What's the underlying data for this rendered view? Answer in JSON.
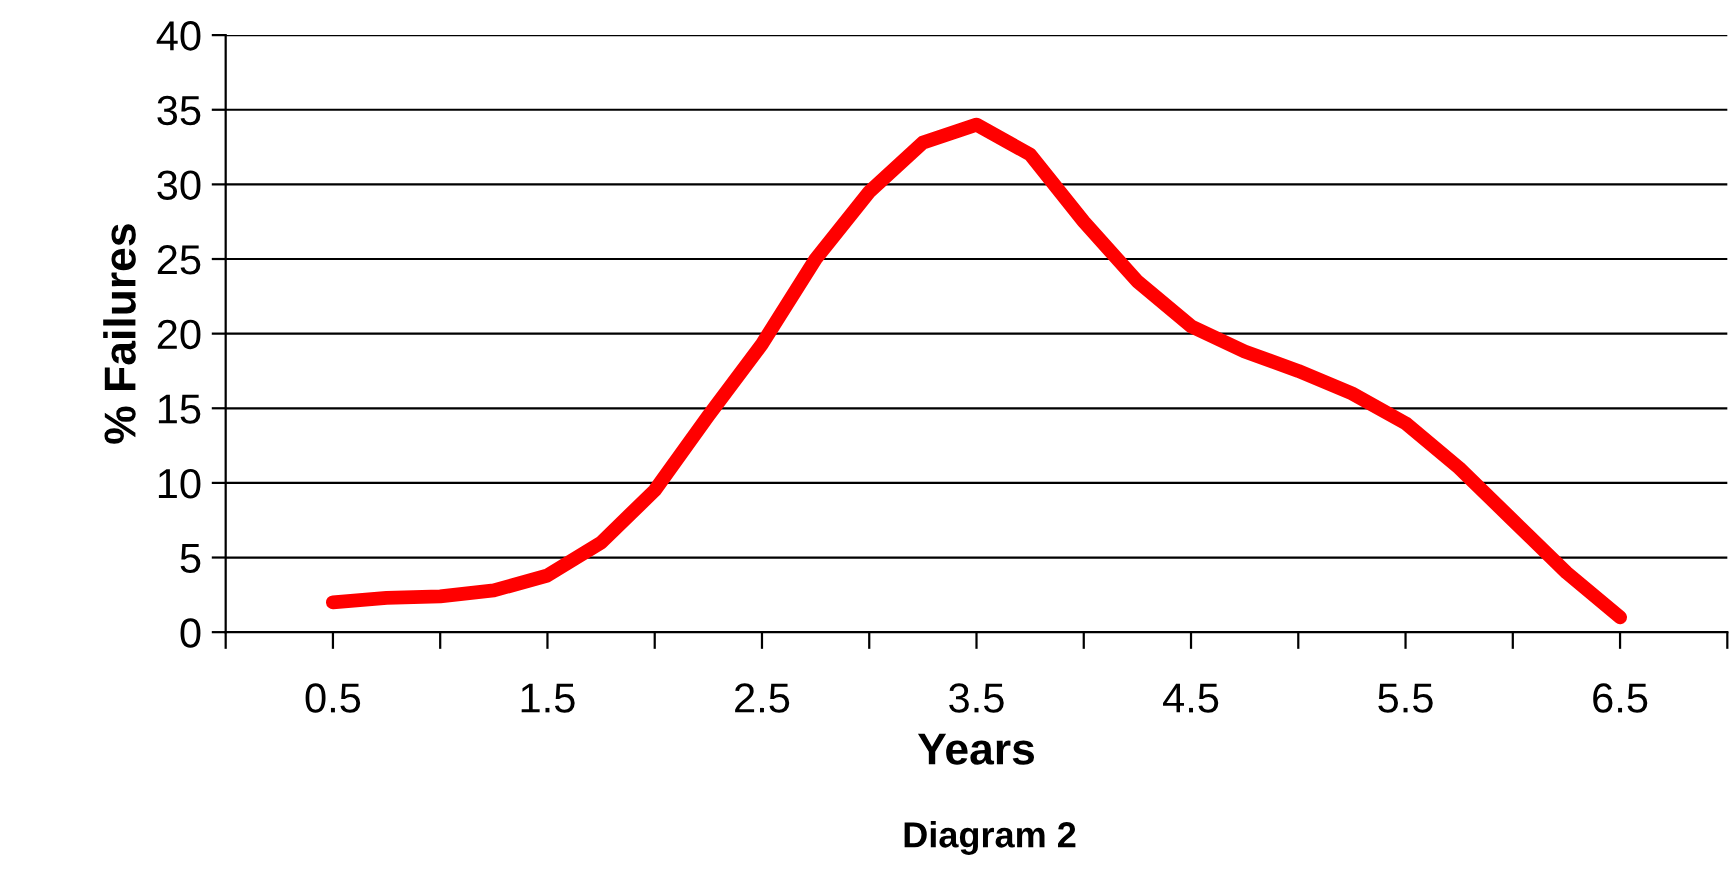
{
  "chart_data": {
    "type": "line",
    "xlabel": "Years",
    "ylabel": "% Failures",
    "x": [
      0.5,
      0.75,
      1.0,
      1.25,
      1.5,
      1.75,
      2.0,
      2.25,
      2.5,
      2.75,
      3.0,
      3.25,
      3.5,
      3.75,
      4.0,
      4.25,
      4.5,
      4.75,
      5.0,
      5.25,
      5.5,
      5.75,
      6.0,
      6.25,
      6.5
    ],
    "series": [
      {
        "color": "#ff0000",
        "values": [
          2,
          2.3,
          2.4,
          2.8,
          3.8,
          6,
          9.5,
          14.5,
          19.3,
          25,
          29.5,
          32.8,
          34,
          32,
          27.5,
          23.5,
          20.5,
          18.8,
          17.5,
          16,
          14,
          11,
          7.5,
          4,
          1
        ]
      }
    ],
    "xlim": [
      0,
      7
    ],
    "xticks": [
      {
        "value": 0,
        "label": null
      },
      0.5,
      {
        "value": 1,
        "label": null
      },
      1.5,
      {
        "value": 2,
        "label": null
      },
      2.5,
      {
        "value": 3,
        "label": null
      },
      3.5,
      {
        "value": 4,
        "label": null
      },
      4.5,
      {
        "value": 5,
        "label": null
      },
      5.5,
      {
        "value": 6,
        "label": null
      },
      6.5,
      {
        "value": 7,
        "label": null
      }
    ],
    "ylim": [
      0,
      40
    ],
    "yticks": [
      0,
      5,
      10,
      15,
      20,
      25,
      30,
      35,
      40
    ],
    "grid": "y",
    "marker": "none",
    "line_style": "solid",
    "annotations": [
      "Diagram 2"
    ]
  }
}
